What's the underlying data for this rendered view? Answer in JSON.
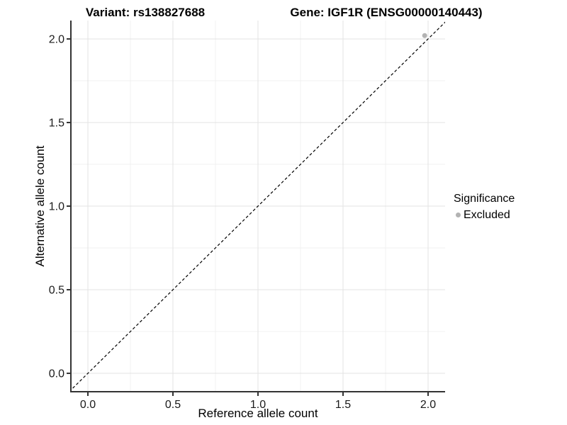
{
  "header": {
    "variant_title": "Variant: rs138827688",
    "gene_title": "Gene: IGF1R (ENSG00000140443)"
  },
  "legend": {
    "title": "Significance",
    "items": [
      {
        "label": "Excluded",
        "color": "#b3b3b3"
      }
    ]
  },
  "colors": {
    "background": "#ffffff",
    "grid_major": "#e3e3e3",
    "grid_minor": "#f0f0f0",
    "axis": "#333333",
    "tick_label": "#1a1a1a",
    "identity_line": "#000000",
    "point": "#b3b3b3",
    "title_text": "#000000"
  },
  "chart_data": {
    "type": "scatter",
    "title": "Variant: rs138827688 / Gene: IGF1R (ENSG00000140443)",
    "xlabel": "Reference allele count",
    "ylabel": "Alternative allele count",
    "xlim": [
      -0.1,
      2.1
    ],
    "ylim": [
      -0.11,
      2.11
    ],
    "x_ticks": [
      0.0,
      0.5,
      1.0,
      1.5,
      2.0
    ],
    "y_ticks": [
      0.0,
      0.5,
      1.0,
      1.5,
      2.0
    ],
    "x_minor_ticks": [
      0.25,
      0.75,
      1.25,
      1.75
    ],
    "y_minor_ticks": [
      0.25,
      0.75,
      1.25,
      1.75
    ],
    "tick_format_decimals": 1,
    "grid": "major+minor",
    "legend_position": "right",
    "series": [
      {
        "name": "Excluded",
        "color": "#b3b3b3",
        "marker": "circle",
        "points": [
          {
            "x": 1.98,
            "y": 2.02
          }
        ]
      }
    ],
    "identity_line": {
      "style": "dashed",
      "color": "#000000",
      "x1": -0.11,
      "y1": -0.11,
      "x2": 2.11,
      "y2": 2.11
    }
  }
}
